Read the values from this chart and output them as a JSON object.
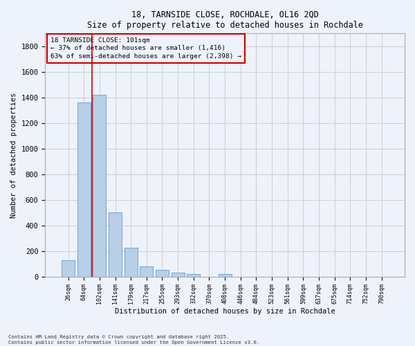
{
  "title_line1": "18, TARNSIDE CLOSE, ROCHDALE, OL16 2QD",
  "title_line2": "Size of property relative to detached houses in Rochdale",
  "xlabel": "Distribution of detached houses by size in Rochdale",
  "ylabel": "Number of detached properties",
  "categories": [
    "26sqm",
    "64sqm",
    "102sqm",
    "141sqm",
    "179sqm",
    "217sqm",
    "255sqm",
    "293sqm",
    "332sqm",
    "370sqm",
    "408sqm",
    "446sqm",
    "484sqm",
    "523sqm",
    "561sqm",
    "599sqm",
    "637sqm",
    "675sqm",
    "714sqm",
    "752sqm",
    "790sqm"
  ],
  "values": [
    130,
    1360,
    1420,
    500,
    225,
    80,
    50,
    30,
    20,
    0,
    18,
    0,
    0,
    0,
    0,
    0,
    0,
    0,
    0,
    0,
    0
  ],
  "bar_color": "#b8cfe8",
  "bar_edge_color": "#6699cc",
  "annotation_text": "18 TARNSIDE CLOSE: 101sqm\n← 37% of detached houses are smaller (1,416)\n63% of semi-detached houses are larger (2,398) →",
  "vline_color": "#cc0000",
  "box_color": "#cc0000",
  "ylim": [
    0,
    1900
  ],
  "yticks": [
    0,
    200,
    400,
    600,
    800,
    1000,
    1200,
    1400,
    1600,
    1800
  ],
  "grid_color": "#cccccc",
  "bg_color": "#eef2fb",
  "footnote": "Contains HM Land Registry data © Crown copyright and database right 2025.\nContains public sector information licensed under the Open Government Licence v3.0."
}
